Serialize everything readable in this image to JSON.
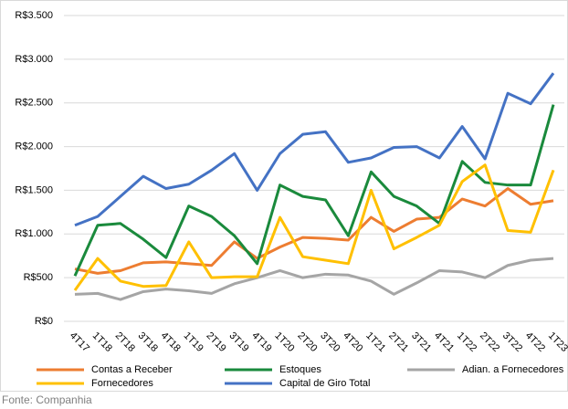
{
  "chart_data": {
    "type": "line",
    "categories": [
      "4T17",
      "1T18",
      "2T18",
      "3T18",
      "4T18",
      "1T19",
      "2T19",
      "3T19",
      "4T19",
      "1T20",
      "2T20",
      "3T20",
      "4T20",
      "1T21",
      "2T21",
      "3T21",
      "4T21",
      "1T22",
      "2T22",
      "3T22",
      "4T22",
      "1T23"
    ],
    "series": [
      {
        "name": "Contas a Receber",
        "color": "#ED7D31",
        "values": [
          600,
          550,
          580,
          670,
          680,
          660,
          640,
          910,
          720,
          850,
          960,
          950,
          930,
          1190,
          1030,
          1170,
          1190,
          1400,
          1320,
          1520,
          1340,
          1380
        ]
      },
      {
        "name": "Estoques",
        "color": "#1A8A3C",
        "values": [
          520,
          1100,
          1120,
          940,
          730,
          1320,
          1200,
          980,
          660,
          1560,
          1430,
          1390,
          980,
          1710,
          1430,
          1320,
          1120,
          1830,
          1590,
          1560,
          1560,
          2480
        ]
      },
      {
        "name": "Adian. a Fornecedores",
        "color": "#A5A5A5",
        "values": [
          310,
          320,
          250,
          340,
          370,
          350,
          320,
          430,
          500,
          580,
          500,
          540,
          530,
          460,
          310,
          440,
          580,
          565,
          500,
          640,
          700,
          720
        ]
      },
      {
        "name": "Fornecedores",
        "color": "#FFC000",
        "values": [
          355,
          720,
          460,
          400,
          410,
          910,
          500,
          510,
          510,
          1190,
          740,
          700,
          660,
          1500,
          830,
          960,
          1100,
          1600,
          1790,
          1040,
          1020,
          1730
        ]
      },
      {
        "name": "Capital de Giro Total",
        "color": "#4472C4",
        "values": [
          1100,
          1200,
          1430,
          1660,
          1520,
          1570,
          1730,
          1920,
          1500,
          1920,
          2140,
          2170,
          1820,
          1870,
          1990,
          2000,
          1870,
          2230,
          1860,
          2610,
          2490,
          2840
        ]
      }
    ],
    "ylim": [
      0,
      3500
    ],
    "yticks": [
      {
        "value": 0,
        "label": "R$0"
      },
      {
        "value": 500,
        "label": "R$500"
      },
      {
        "value": 1000,
        "label": "R$1.000"
      },
      {
        "value": 1500,
        "label": "R$1.500"
      },
      {
        "value": 2000,
        "label": "R$2.000"
      },
      {
        "value": 2500,
        "label": "R$2.500"
      },
      {
        "value": 3000,
        "label": "R$3.000"
      },
      {
        "value": 3500,
        "label": "R$3.500"
      }
    ],
    "grid": true,
    "source": "Fonte: Companhia"
  }
}
